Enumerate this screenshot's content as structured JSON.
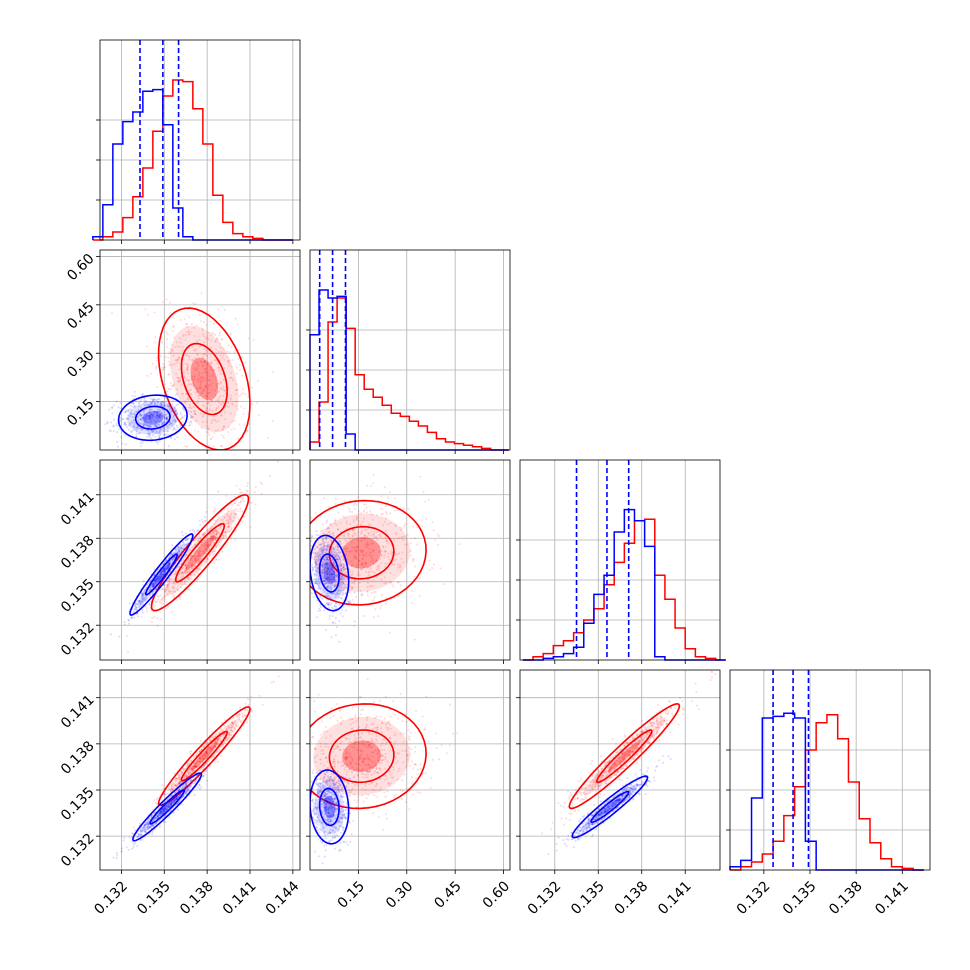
{
  "chart_data": {
    "type": "corner",
    "n_params": 4,
    "grid": true,
    "colors": {
      "series_a": "#0000ff",
      "series_b": "#ff0000"
    },
    "params": [
      {
        "range": [
          0.1305,
          0.1445
        ],
        "ticks": [
          "0.132",
          "0.135",
          "0.138",
          "0.141",
          "0.144"
        ],
        "tick_values": [
          0.132,
          0.135,
          0.138,
          0.141,
          0.144
        ]
      },
      {
        "range": [
          0.0,
          0.62
        ],
        "ticks": [
          "0.15",
          "0.30",
          "0.45",
          "0.60"
        ],
        "tick_values": [
          0.15,
          0.3,
          0.45,
          0.6
        ]
      },
      {
        "range": [
          0.1296,
          0.1434
        ],
        "ticks": [
          "0.132",
          "0.135",
          "0.138",
          "0.141"
        ],
        "tick_values": [
          0.132,
          0.135,
          0.138,
          0.141
        ]
      },
      {
        "range": [
          0.1298,
          0.1428
        ],
        "ticks": [
          "0.132",
          "0.135",
          "0.138",
          "0.141"
        ],
        "tick_values": [
          0.132,
          0.135,
          0.138,
          0.141
        ]
      }
    ],
    "diagonal": [
      {
        "quantiles_a": [
          0.1333,
          0.1349,
          0.136
        ],
        "hist_a": {
          "edges_start": 0.13,
          "bin_width": 0.0007,
          "counts": [
            0.02,
            0.22,
            0.6,
            0.74,
            0.8,
            0.93,
            0.94,
            0.72,
            0.2,
            0.02,
            0.0,
            0.0,
            0.0,
            0.0,
            0.0,
            0.0,
            0.0,
            0.0,
            0.0,
            0.0
          ]
        },
        "hist_b": {
          "edges_start": 0.13,
          "bin_width": 0.0007,
          "counts": [
            0.0,
            0.02,
            0.05,
            0.14,
            0.27,
            0.45,
            0.68,
            0.9,
            1.0,
            0.99,
            0.82,
            0.6,
            0.28,
            0.11,
            0.04,
            0.02,
            0.01,
            0.0,
            0.0,
            0.0
          ]
        }
      },
      {
        "quantiles_a": [
          0.03,
          0.07,
          0.11
        ],
        "hist_a": {
          "edges_start": 0.0,
          "bin_width": 0.028,
          "counts": [
            0.72,
            1.0,
            0.95,
            0.96,
            0.1,
            0.0,
            0.0,
            0.0,
            0.0,
            0.0,
            0.0,
            0.0,
            0.0,
            0.0,
            0.0,
            0.0,
            0.0,
            0.0,
            0.0,
            0.0,
            0.0,
            0.0
          ]
        },
        "hist_b": {
          "edges_start": 0.0,
          "bin_width": 0.028,
          "counts": [
            0.05,
            0.3,
            0.8,
            0.95,
            0.76,
            0.47,
            0.38,
            0.33,
            0.28,
            0.23,
            0.21,
            0.18,
            0.15,
            0.11,
            0.07,
            0.05,
            0.04,
            0.03,
            0.02,
            0.01,
            0.0,
            0.0
          ]
        }
      },
      {
        "quantiles_a": [
          0.1335,
          0.1356,
          0.1371
        ],
        "hist_a": {
          "edges_start": 0.1298,
          "bin_width": 0.0007,
          "counts": [
            0.0,
            0.0,
            0.01,
            0.02,
            0.04,
            0.08,
            0.23,
            0.41,
            0.53,
            0.8,
            0.94,
            0.87,
            0.71,
            0.02,
            0.0,
            0.0,
            0.0,
            0.0,
            0.0,
            0.0
          ]
        },
        "hist_b": {
          "edges_start": 0.1298,
          "bin_width": 0.0007,
          "counts": [
            0.0,
            0.02,
            0.04,
            0.09,
            0.12,
            0.17,
            0.25,
            0.32,
            0.47,
            0.61,
            0.73,
            0.87,
            0.88,
            0.53,
            0.38,
            0.2,
            0.07,
            0.02,
            0.01,
            0.0
          ]
        }
      },
      {
        "quantiles_a": [
          0.1326,
          0.1339,
          0.1349
        ],
        "hist_a": {
          "edges_start": 0.1298,
          "bin_width": 0.0007,
          "counts": [
            0.02,
            0.06,
            0.45,
            0.95,
            0.96,
            0.98,
            0.95,
            0.18,
            0.0,
            0.0,
            0.0,
            0.0,
            0.0,
            0.0,
            0.0,
            0.0,
            0.0,
            0.0
          ]
        },
        "hist_b": {
          "edges_start": 0.1298,
          "bin_width": 0.0007,
          "counts": [
            0.0,
            0.02,
            0.05,
            0.1,
            0.18,
            0.34,
            0.52,
            0.75,
            0.92,
            0.97,
            0.82,
            0.55,
            0.32,
            0.17,
            0.07,
            0.02,
            0.01,
            0.0
          ]
        }
      }
    ],
    "pairs": [
      {
        "row": 1,
        "col": 0,
        "a": {
          "mean": [
            0.1342,
            0.1
          ],
          "sd": [
            0.0012,
            0.035
          ],
          "rho": 0.1
        },
        "b": {
          "mean": [
            0.1378,
            0.22
          ],
          "sd": [
            0.0016,
            0.11
          ],
          "rho": -0.35
        }
      },
      {
        "row": 2,
        "col": 0,
        "a": {
          "mean": [
            0.1348,
            0.1355
          ],
          "sd": [
            0.0011,
            0.0014
          ],
          "rho": 0.96
        },
        "b": {
          "mean": [
            0.1375,
            0.137
          ],
          "sd": [
            0.0017,
            0.002
          ],
          "rho": 0.93
        }
      },
      {
        "row": 2,
        "col": 1,
        "a": {
          "mean": [
            0.06,
            0.1356
          ],
          "sd": [
            0.03,
            0.0013
          ],
          "rho": -0.2
        },
        "b": {
          "mean": [
            0.16,
            0.137
          ],
          "sd": [
            0.1,
            0.0018
          ],
          "rho": 0.05
        }
      },
      {
        "row": 3,
        "col": 0,
        "a": {
          "mean": [
            0.1352,
            0.1339
          ],
          "sd": [
            0.0012,
            0.0011
          ],
          "rho": 0.96
        },
        "b": {
          "mean": [
            0.1378,
            0.1372
          ],
          "sd": [
            0.0016,
            0.0016
          ],
          "rho": 0.96
        }
      },
      {
        "row": 3,
        "col": 1,
        "a": {
          "mean": [
            0.06,
            0.1339
          ],
          "sd": [
            0.03,
            0.0012
          ],
          "rho": -0.1
        },
        "b": {
          "mean": [
            0.16,
            0.1372
          ],
          "sd": [
            0.1,
            0.0017
          ],
          "rho": 0.05
        }
      },
      {
        "row": 3,
        "col": 2,
        "a": {
          "mean": [
            0.1358,
            0.1339
          ],
          "sd": [
            0.0013,
            0.001
          ],
          "rho": 0.95
        },
        "b": {
          "mean": [
            0.1368,
            0.1372
          ],
          "sd": [
            0.0019,
            0.0017
          ],
          "rho": 0.96
        }
      }
    ]
  }
}
